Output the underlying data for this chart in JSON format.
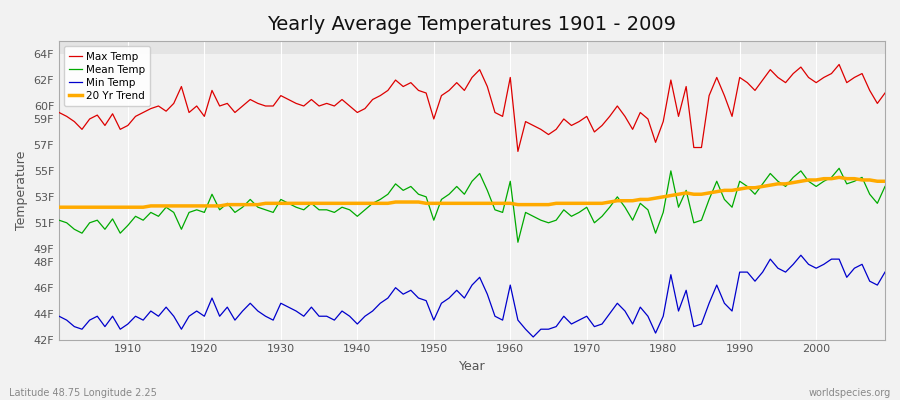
{
  "title": "Yearly Average Temperatures 1901 - 2009",
  "xlabel": "Year",
  "ylabel": "Temperature",
  "xlim": [
    1901,
    2009
  ],
  "ylim": [
    42,
    65
  ],
  "background_color": "#f0f0f0",
  "plot_bg_color": "#e8e8e8",
  "grid_color": "#ffffff",
  "title_fontsize": 14,
  "max_color": "#dd0000",
  "mean_color": "#00aa00",
  "min_color": "#0000cc",
  "trend_color": "#ffaa00",
  "legend_labels": [
    "Max Temp",
    "Mean Temp",
    "Min Temp",
    "20 Yr Trend"
  ],
  "yticks": [
    42,
    44,
    46,
    48,
    49,
    51,
    53,
    55,
    57,
    59,
    60,
    62,
    64
  ],
  "ytick_labels": [
    "42F",
    "44F",
    "46F",
    "48F",
    "49F",
    "51F",
    "53F",
    "55F",
    "57F",
    "59F",
    "60F",
    "62F",
    "64F"
  ],
  "xticks": [
    1910,
    1920,
    1930,
    1940,
    1950,
    1960,
    1970,
    1980,
    1990,
    2000
  ],
  "years": [
    1901,
    1902,
    1903,
    1904,
    1905,
    1906,
    1907,
    1908,
    1909,
    1910,
    1911,
    1912,
    1913,
    1914,
    1915,
    1916,
    1917,
    1918,
    1919,
    1920,
    1921,
    1922,
    1923,
    1924,
    1925,
    1926,
    1927,
    1928,
    1929,
    1930,
    1931,
    1932,
    1933,
    1934,
    1935,
    1936,
    1937,
    1938,
    1939,
    1940,
    1941,
    1942,
    1943,
    1944,
    1945,
    1946,
    1947,
    1948,
    1949,
    1950,
    1951,
    1952,
    1953,
    1954,
    1955,
    1956,
    1957,
    1958,
    1959,
    1960,
    1961,
    1962,
    1963,
    1964,
    1965,
    1966,
    1967,
    1968,
    1969,
    1970,
    1971,
    1972,
    1973,
    1974,
    1975,
    1976,
    1977,
    1978,
    1979,
    1980,
    1981,
    1982,
    1983,
    1984,
    1985,
    1986,
    1987,
    1988,
    1989,
    1990,
    1991,
    1992,
    1993,
    1994,
    1995,
    1996,
    1997,
    1998,
    1999,
    2000,
    2001,
    2002,
    2003,
    2004,
    2005,
    2006,
    2007,
    2008,
    2009
  ],
  "max_temp": [
    59.5,
    59.2,
    58.8,
    58.2,
    59.0,
    59.3,
    58.5,
    59.4,
    58.2,
    58.5,
    59.2,
    59.5,
    59.8,
    60.0,
    59.6,
    60.2,
    61.5,
    59.5,
    60.0,
    59.2,
    61.2,
    60.0,
    60.2,
    59.5,
    60.0,
    60.5,
    60.2,
    60.0,
    60.0,
    60.8,
    60.5,
    60.2,
    60.0,
    60.5,
    60.0,
    60.2,
    60.0,
    60.5,
    60.0,
    59.5,
    59.8,
    60.5,
    60.8,
    61.2,
    62.0,
    61.5,
    61.8,
    61.2,
    61.0,
    59.0,
    60.8,
    61.2,
    61.8,
    61.2,
    62.2,
    62.8,
    61.5,
    59.5,
    59.2,
    62.2,
    56.5,
    58.8,
    58.5,
    58.2,
    57.8,
    58.2,
    59.0,
    58.5,
    58.8,
    59.2,
    58.0,
    58.5,
    59.2,
    60.0,
    59.2,
    58.2,
    59.5,
    59.0,
    57.2,
    58.8,
    62.0,
    59.2,
    61.5,
    56.8,
    56.8,
    60.8,
    62.2,
    60.8,
    59.2,
    62.2,
    61.8,
    61.2,
    62.0,
    62.8,
    62.2,
    61.8,
    62.5,
    63.0,
    62.2,
    61.8,
    62.2,
    62.5,
    63.2,
    61.8,
    62.2,
    62.5,
    61.2,
    60.2,
    61.0
  ],
  "mean_temp": [
    51.2,
    51.0,
    50.5,
    50.2,
    51.0,
    51.2,
    50.5,
    51.3,
    50.2,
    50.8,
    51.5,
    51.2,
    51.8,
    51.5,
    52.2,
    51.8,
    50.5,
    51.8,
    52.0,
    51.8,
    53.2,
    52.0,
    52.5,
    51.8,
    52.2,
    52.8,
    52.2,
    52.0,
    51.8,
    52.8,
    52.5,
    52.2,
    52.0,
    52.5,
    52.0,
    52.0,
    51.8,
    52.2,
    52.0,
    51.5,
    52.0,
    52.5,
    52.8,
    53.2,
    54.0,
    53.5,
    53.8,
    53.2,
    53.0,
    51.2,
    52.8,
    53.2,
    53.8,
    53.2,
    54.2,
    54.8,
    53.5,
    52.0,
    51.8,
    54.2,
    49.5,
    51.8,
    51.5,
    51.2,
    51.0,
    51.2,
    52.0,
    51.5,
    51.8,
    52.2,
    51.0,
    51.5,
    52.2,
    53.0,
    52.2,
    51.2,
    52.5,
    52.0,
    50.2,
    51.8,
    55.0,
    52.2,
    53.5,
    51.0,
    51.2,
    52.8,
    54.2,
    52.8,
    52.2,
    54.2,
    53.8,
    53.2,
    54.0,
    54.8,
    54.2,
    53.8,
    54.5,
    55.0,
    54.2,
    53.8,
    54.2,
    54.5,
    55.2,
    54.0,
    54.2,
    54.5,
    53.2,
    52.5,
    53.8
  ],
  "min_temp": [
    43.8,
    43.5,
    43.0,
    42.8,
    43.5,
    43.8,
    43.0,
    43.8,
    42.8,
    43.2,
    43.8,
    43.5,
    44.2,
    43.8,
    44.5,
    43.8,
    42.8,
    43.8,
    44.2,
    43.8,
    45.2,
    43.8,
    44.5,
    43.5,
    44.2,
    44.8,
    44.2,
    43.8,
    43.5,
    44.8,
    44.5,
    44.2,
    43.8,
    44.5,
    43.8,
    43.8,
    43.5,
    44.2,
    43.8,
    43.2,
    43.8,
    44.2,
    44.8,
    45.2,
    46.0,
    45.5,
    45.8,
    45.2,
    45.0,
    43.5,
    44.8,
    45.2,
    45.8,
    45.2,
    46.2,
    46.8,
    45.5,
    43.8,
    43.5,
    46.2,
    43.5,
    42.8,
    42.2,
    42.8,
    42.8,
    43.0,
    43.8,
    43.2,
    43.5,
    43.8,
    43.0,
    43.2,
    44.0,
    44.8,
    44.2,
    43.2,
    44.5,
    43.8,
    42.5,
    43.8,
    47.0,
    44.2,
    45.8,
    43.0,
    43.2,
    44.8,
    46.2,
    44.8,
    44.2,
    47.2,
    47.2,
    46.5,
    47.2,
    48.2,
    47.5,
    47.2,
    47.8,
    48.5,
    47.8,
    47.5,
    47.8,
    48.2,
    48.2,
    46.8,
    47.5,
    47.8,
    46.5,
    46.2,
    47.2
  ],
  "trend": [
    52.2,
    52.2,
    52.2,
    52.2,
    52.2,
    52.2,
    52.2,
    52.2,
    52.2,
    52.2,
    52.2,
    52.2,
    52.3,
    52.3,
    52.3,
    52.3,
    52.3,
    52.3,
    52.3,
    52.3,
    52.3,
    52.3,
    52.4,
    52.4,
    52.4,
    52.4,
    52.4,
    52.5,
    52.5,
    52.5,
    52.5,
    52.5,
    52.5,
    52.5,
    52.5,
    52.5,
    52.5,
    52.5,
    52.5,
    52.5,
    52.5,
    52.5,
    52.5,
    52.5,
    52.6,
    52.6,
    52.6,
    52.6,
    52.5,
    52.5,
    52.5,
    52.5,
    52.5,
    52.5,
    52.5,
    52.5,
    52.5,
    52.5,
    52.5,
    52.5,
    52.4,
    52.4,
    52.4,
    52.4,
    52.4,
    52.5,
    52.5,
    52.5,
    52.5,
    52.5,
    52.5,
    52.5,
    52.6,
    52.7,
    52.7,
    52.7,
    52.8,
    52.8,
    52.9,
    53.0,
    53.1,
    53.2,
    53.3,
    53.2,
    53.2,
    53.3,
    53.4,
    53.5,
    53.5,
    53.6,
    53.7,
    53.7,
    53.8,
    53.9,
    54.0,
    54.0,
    54.1,
    54.2,
    54.3,
    54.3,
    54.4,
    54.4,
    54.5,
    54.4,
    54.4,
    54.3,
    54.3,
    54.2,
    54.2
  ]
}
